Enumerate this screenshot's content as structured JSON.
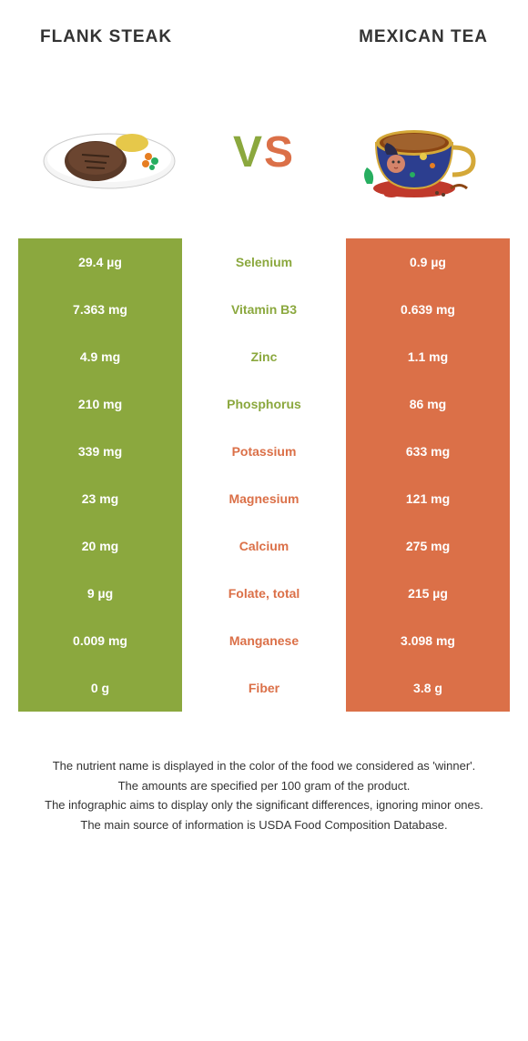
{
  "header": {
    "left_title": "FLANK STEAK",
    "right_title": "MEXICAN TEA"
  },
  "vs": {
    "v": "V",
    "s": "S"
  },
  "colors": {
    "left": "#8ba83e",
    "right": "#db7048"
  },
  "rows": [
    {
      "left": "29.4 µg",
      "label": "Selenium",
      "right": "0.9 µg",
      "winner": "left"
    },
    {
      "left": "7.363 mg",
      "label": "Vitamin B3",
      "right": "0.639 mg",
      "winner": "left"
    },
    {
      "left": "4.9 mg",
      "label": "Zinc",
      "right": "1.1 mg",
      "winner": "left"
    },
    {
      "left": "210 mg",
      "label": "Phosphorus",
      "right": "86 mg",
      "winner": "left"
    },
    {
      "left": "339 mg",
      "label": "Potassium",
      "right": "633 mg",
      "winner": "right"
    },
    {
      "left": "23 mg",
      "label": "Magnesium",
      "right": "121 mg",
      "winner": "right"
    },
    {
      "left": "20 mg",
      "label": "Calcium",
      "right": "275 mg",
      "winner": "right"
    },
    {
      "left": "9 µg",
      "label": "Folate, total",
      "right": "215 µg",
      "winner": "right"
    },
    {
      "left": "0.009 mg",
      "label": "Manganese",
      "right": "3.098 mg",
      "winner": "right"
    },
    {
      "left": "0 g",
      "label": "Fiber",
      "right": "3.8 g",
      "winner": "right"
    }
  ],
  "footer": {
    "line1": "The nutrient name is displayed in the color of the food we considered as 'winner'.",
    "line2": "The amounts are specified per 100 gram of the product.",
    "line3": "The infographic aims to display only the significant differences, ignoring minor ones.",
    "line4": "The main source of information is USDA Food Composition Database."
  }
}
